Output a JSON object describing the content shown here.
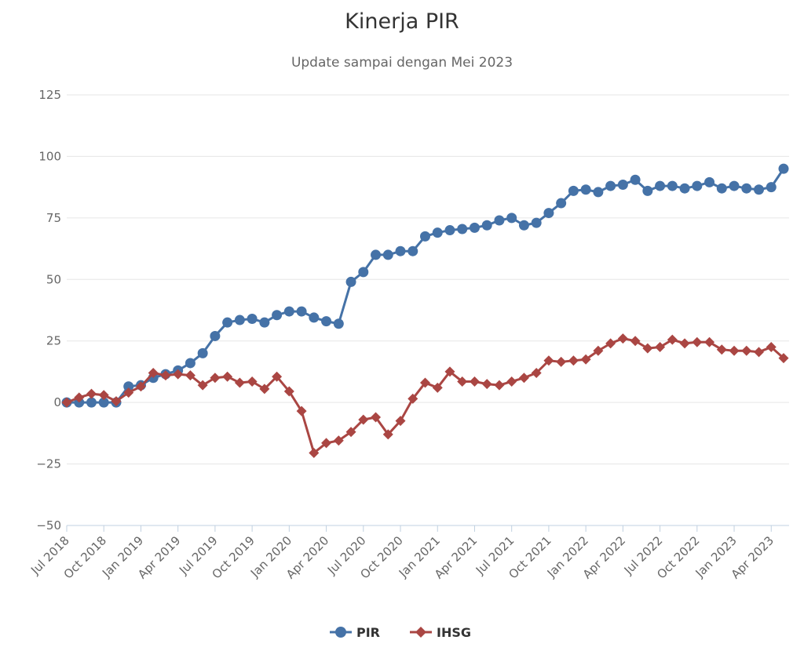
{
  "chart_data": {
    "type": "line",
    "title": "Kinerja PIR",
    "subtitle": "Update sampai dengan Mei 2023",
    "xlabel": "",
    "ylabel": "",
    "ylim": [
      -50,
      125
    ],
    "yticks": [
      125,
      100,
      75,
      50,
      25,
      0,
      -25,
      -50
    ],
    "ytick_labels": [
      "125",
      "100",
      "75",
      "50",
      "25",
      "0",
      "−25",
      "−50"
    ],
    "grid": true,
    "legend": "bottom-center",
    "x": [
      "Jul 2018",
      "Aug 2018",
      "Sep 2018",
      "Oct 2018",
      "Nov 2018",
      "Dec 2018",
      "Jan 2019",
      "Feb 2019",
      "Mar 2019",
      "Apr 2019",
      "May 2019",
      "Jun 2019",
      "Jul 2019",
      "Aug 2019",
      "Sep 2019",
      "Oct 2019",
      "Nov 2019",
      "Dec 2019",
      "Jan 2020",
      "Feb 2020",
      "Mar 2020",
      "Apr 2020",
      "May 2020",
      "Jun 2020",
      "Jul 2020",
      "Aug 2020",
      "Sep 2020",
      "Oct 2020",
      "Nov 2020",
      "Dec 2020",
      "Jan 2021",
      "Feb 2021",
      "Mar 2021",
      "Apr 2021",
      "May 2021",
      "Jun 2021",
      "Jul 2021",
      "Aug 2021",
      "Sep 2021",
      "Oct 2021",
      "Nov 2021",
      "Dec 2021",
      "Jan 2022",
      "Feb 2022",
      "Mar 2022",
      "Apr 2022",
      "May 2022",
      "Jun 2022",
      "Jul 2022",
      "Aug 2022",
      "Sep 2022",
      "Oct 2022",
      "Nov 2022",
      "Dec 2022",
      "Jan 2023",
      "Feb 2023",
      "Mar 2023",
      "Apr 2023",
      "May 2023"
    ],
    "x_tick_labels": [
      "Jul 2018",
      "Oct 2018",
      "Jan 2019",
      "Apr 2019",
      "Jul 2019",
      "Oct 2019",
      "Jan 2020",
      "Apr 2020",
      "Jul 2020",
      "Oct 2020",
      "Jan 2021",
      "Apr 2021",
      "Jul 2021",
      "Oct 2021",
      "Jan 2022",
      "Apr 2022",
      "Jul 2022",
      "Oct 2022",
      "Jan 2023",
      "Apr 2023"
    ],
    "series": [
      {
        "name": "PIR",
        "color": "#4572a7",
        "marker": "circle",
        "values": [
          0,
          0,
          0,
          0,
          0,
          6.5,
          7,
          10,
          11.5,
          13,
          16,
          20,
          27,
          32.5,
          33.5,
          34,
          32.5,
          35.5,
          37,
          37,
          34.5,
          33,
          32,
          49,
          53,
          60,
          60,
          61.5,
          61.5,
          67.5,
          69,
          70,
          70.5,
          71,
          72,
          74,
          75,
          72,
          73,
          77,
          81,
          86,
          86.5,
          85.5,
          88,
          88.5,
          90.5,
          86,
          88,
          88,
          87,
          88,
          89.5,
          87,
          88,
          87,
          86.5,
          87.5,
          95
        ]
      },
      {
        "name": "IHSG",
        "color": "#aa4643",
        "marker": "diamond",
        "values": [
          0,
          2,
          3.5,
          3,
          0.5,
          4,
          6.5,
          12,
          11,
          11.5,
          11,
          7,
          10,
          10.5,
          8,
          8.5,
          5.5,
          10.5,
          4.5,
          -3.5,
          -20.5,
          -16.5,
          -15.5,
          -12,
          -7,
          -6,
          -13,
          -7.5,
          1.5,
          8,
          6,
          12.5,
          8.5,
          8.5,
          7.5,
          7,
          8.5,
          10,
          12,
          17,
          16.5,
          17,
          17.5,
          21,
          24,
          26,
          25,
          22,
          22.5,
          25.5,
          24,
          24.5,
          24.5,
          21.5,
          21,
          21,
          20.5,
          22.5,
          18
        ]
      }
    ]
  }
}
